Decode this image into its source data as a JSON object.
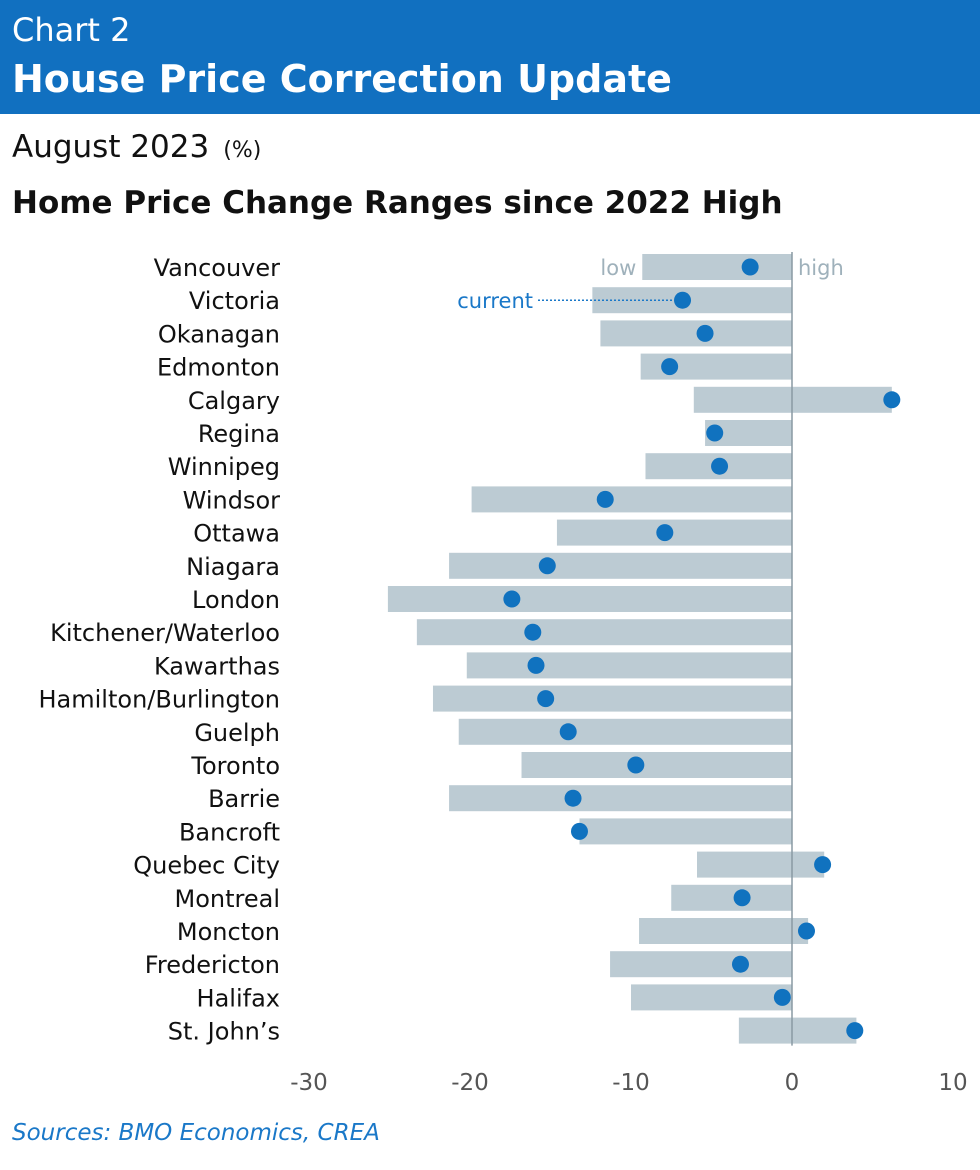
{
  "header": {
    "chart_number": "Chart 2",
    "title": "House Price Correction Update"
  },
  "subtitle": {
    "date": "August 2023",
    "unit": "(%)"
  },
  "panel_title": "Home Price Change Ranges since 2022 High",
  "source": "Sources: BMO Economics, CREA",
  "colors": {
    "header_bg": "#1170c0",
    "range_bar": "#bccbd3",
    "current_dot": "#1072bf",
    "annotation_grey": "#9fb1bb",
    "annotation_blue": "#1a78c8",
    "source_text": "#1a78c8"
  },
  "annotations": {
    "low": "low",
    "high": "high",
    "current": "current"
  },
  "chart_data": {
    "type": "range_dot",
    "x_axis": {
      "min": -30,
      "max": 10,
      "ticks": [
        -30,
        -20,
        -10,
        0,
        10
      ],
      "tick_labels": [
        "-30",
        "-20",
        "-10",
        "0",
        "10"
      ]
    },
    "grid": false,
    "series": [
      {
        "name": "low"
      },
      {
        "name": "high"
      },
      {
        "name": "current"
      }
    ],
    "rows": [
      {
        "label": "Vancouver",
        "low": -9.3,
        "high": 0,
        "current": -2.6
      },
      {
        "label": "Victoria",
        "low": -12.4,
        "high": 0,
        "current": -6.8
      },
      {
        "label": "Okanagan",
        "low": -11.9,
        "high": 0,
        "current": -5.4
      },
      {
        "label": "Edmonton",
        "low": -9.4,
        "high": 0,
        "current": -7.6
      },
      {
        "label": "Calgary",
        "low": -6.1,
        "high": 6.2,
        "current": 6.2
      },
      {
        "label": "Regina",
        "low": -5.4,
        "high": 0,
        "current": -4.8
      },
      {
        "label": "Winnipeg",
        "low": -9.1,
        "high": 0,
        "current": -4.5
      },
      {
        "label": "Windsor",
        "low": -19.9,
        "high": 0,
        "current": -11.6
      },
      {
        "label": "Ottawa",
        "low": -14.6,
        "high": 0,
        "current": -7.9
      },
      {
        "label": "Niagara",
        "low": -21.3,
        "high": 0,
        "current": -15.2
      },
      {
        "label": "London",
        "low": -25.1,
        "high": 0,
        "current": -17.4
      },
      {
        "label": "Kitchener/Waterloo",
        "low": -23.3,
        "high": 0,
        "current": -16.1
      },
      {
        "label": "Kawarthas",
        "low": -20.2,
        "high": 0,
        "current": -15.9
      },
      {
        "label": "Hamilton/Burlington",
        "low": -22.3,
        "high": 0,
        "current": -15.3
      },
      {
        "label": "Guelph",
        "low": -20.7,
        "high": 0,
        "current": -13.9
      },
      {
        "label": "Toronto",
        "low": -16.8,
        "high": 0,
        "current": -9.7
      },
      {
        "label": "Barrie",
        "low": -21.3,
        "high": 0,
        "current": -13.6
      },
      {
        "label": "Bancroft",
        "low": -13.2,
        "high": 0,
        "current": -13.2
      },
      {
        "label": "Quebec City",
        "low": -5.9,
        "high": 2.0,
        "current": 1.9
      },
      {
        "label": "Montreal",
        "low": -7.5,
        "high": 0,
        "current": -3.1
      },
      {
        "label": "Moncton",
        "low": -9.5,
        "high": 1.0,
        "current": 0.9
      },
      {
        "label": "Fredericton",
        "low": -11.3,
        "high": 0,
        "current": -3.2
      },
      {
        "label": "Halifax",
        "low": -10.0,
        "high": 0,
        "current": -0.6
      },
      {
        "label": "St. John’s",
        "low": -3.3,
        "high": 4.0,
        "current": 3.9
      }
    ]
  }
}
